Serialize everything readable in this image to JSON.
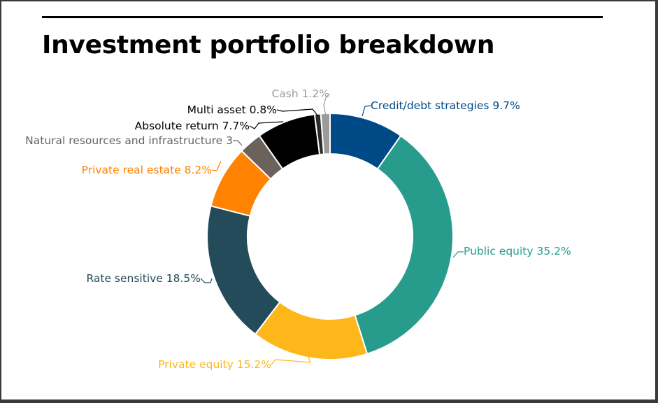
{
  "title": "Investment portfolio breakdown",
  "chart_data": {
    "type": "pie",
    "subtype": "donut",
    "title": "Investment portfolio breakdown",
    "slices": [
      {
        "label": "Credit/debt strategies 9.7%",
        "value": 9.7,
        "color": "#004987"
      },
      {
        "label": "Public equity 35.2%",
        "value": 35.2,
        "color": "#279C8C"
      },
      {
        "label": "Private equity 15.2%",
        "value": 15.2,
        "color": "#FDB71A"
      },
      {
        "label": "Rate sensitive 18.5%",
        "value": 18.5,
        "color": "#244B5A"
      },
      {
        "label": "Private real estate 8.2%",
        "value": 8.2,
        "color": "#FF8300"
      },
      {
        "label": "Natural resources and infrastructure 3",
        "value": 3.0,
        "color": "#6B625B"
      },
      {
        "label": "Absolute return 7.7%",
        "value": 7.7,
        "color": "#000000"
      },
      {
        "label": "Multi asset 0.8%",
        "value": 0.8,
        "color": "#2B2B2B"
      },
      {
        "label": "Cash 1.2%",
        "value": 1.2,
        "color": "#9B9B9B"
      }
    ]
  }
}
